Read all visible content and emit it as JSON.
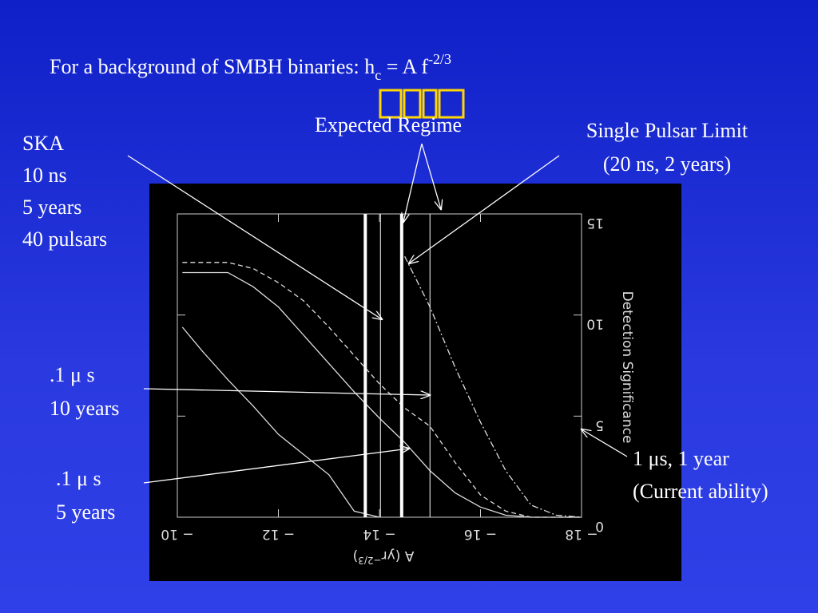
{
  "slide": {
    "title": {
      "text": "For a background of SMBH binaries: h",
      "sub": "c",
      "mid": " = A f",
      "sup": "-2/3"
    },
    "ska": [
      "SKA",
      "10 ns",
      "5 years",
      "40 pulsars"
    ],
    "expected": "Expected Regime",
    "single": [
      "Single Pulsar Limit",
      "(20 ns, 2 years)"
    ],
    "tenyears": [
      ".1 μ s",
      "10 years"
    ],
    "fiveyears": [
      ".1 μ s",
      "5 years"
    ],
    "current": [
      "1 μs, 1 year",
      "(Current ability)"
    ]
  },
  "chart_data": {
    "type": "line",
    "xlabel": {
      "text": "A (yr",
      "sup": "−2/3",
      "end": ")"
    },
    "ylabel": "Detection Significance",
    "xlim": [
      -10,
      -18
    ],
    "ylim": [
      0,
      15
    ],
    "xticks": [
      {
        "value": -10,
        "label": "− 10"
      },
      {
        "value": -12,
        "label": "− 12"
      },
      {
        "value": -14,
        "label": "− 14"
      },
      {
        "value": -16,
        "label": "− 16"
      },
      {
        "value": -18,
        "label": "− 18"
      }
    ],
    "yticks": [
      0,
      5,
      10,
      15
    ],
    "x": [
      -10.1,
      -10.5,
      -11,
      -11.5,
      -12,
      -12.5,
      -13,
      -13.5,
      -14,
      -14.5,
      -15,
      -15.5,
      -16,
      -16.5,
      -17,
      -17.5,
      -18
    ],
    "series": [
      {
        "color": "#dddddd",
        "dash": "dashed",
        "values": [
          12.6,
          12.6,
          12.6,
          12.3,
          11.6,
          10.7,
          9.4,
          8.0,
          6.6,
          5.4,
          4.5,
          2.7,
          1.1,
          0.3,
          0,
          0,
          0
        ]
      },
      {
        "color": "#dddddd",
        "dash": "solid",
        "values": [
          12.1,
          12.1,
          12.1,
          11.4,
          10.4,
          9.0,
          7.6,
          6.2,
          4.9,
          3.7,
          2.3,
          1.2,
          0.5,
          0.1,
          0,
          0,
          0
        ]
      },
      {
        "color": "#dddddd",
        "dash": "solid",
        "values": [
          9.4,
          8.2,
          6.8,
          5.5,
          4.1,
          3.1,
          2.1,
          0.3,
          0,
          null,
          null,
          null,
          null,
          null,
          null,
          null,
          null
        ]
      },
      {
        "color": "#dddddd",
        "dash": "dashdot",
        "values": [
          null,
          null,
          null,
          null,
          null,
          null,
          null,
          null,
          null,
          12.9,
          10.4,
          7.4,
          4.7,
          2.3,
          0.6,
          0.1,
          0
        ]
      }
    ],
    "vlines": [
      {
        "x": -13.72,
        "thick": true
      },
      {
        "x": -14.02,
        "thick": false
      },
      {
        "x": -14.44,
        "thick": true
      },
      {
        "x": -15.0,
        "thick": false
      }
    ]
  }
}
